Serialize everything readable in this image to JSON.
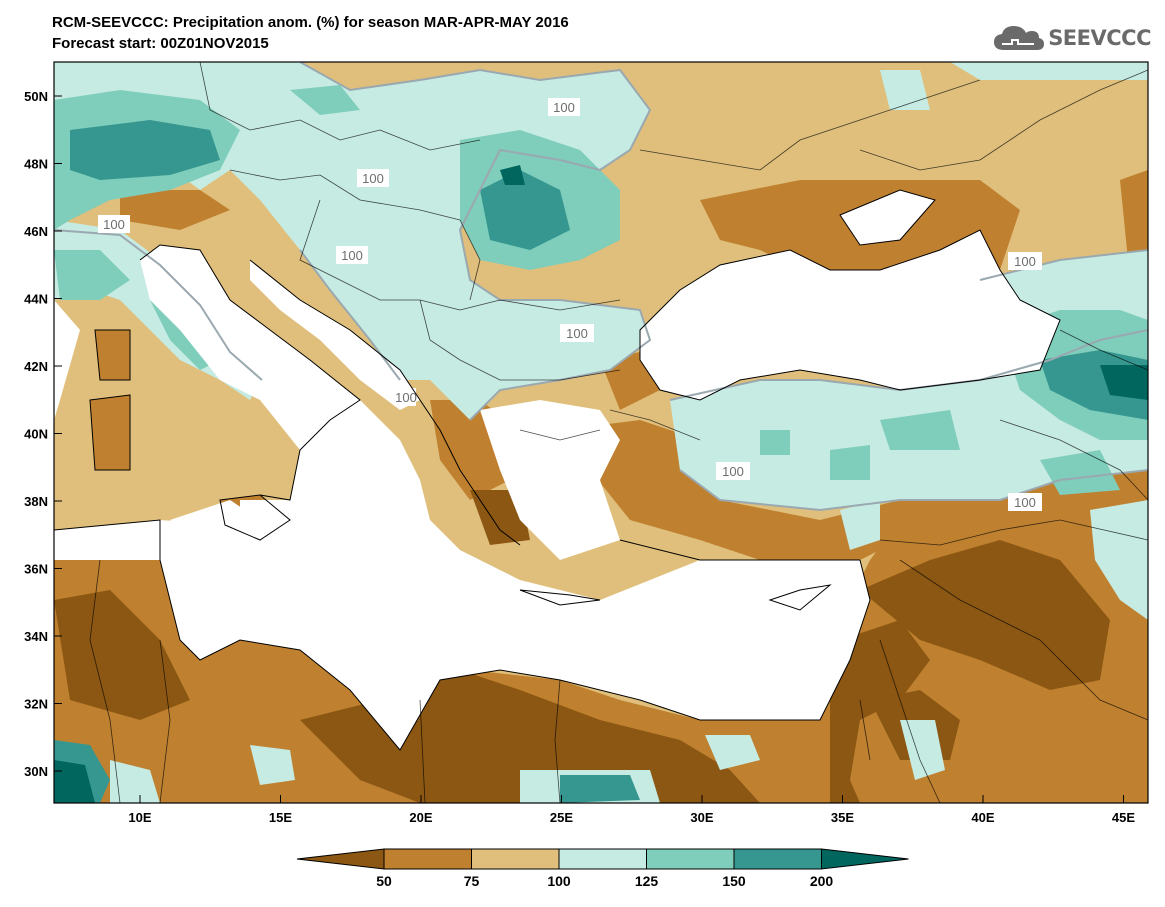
{
  "header": {
    "title": "RCM-SEEVCCC: Precipitation anom. (%) for season MAR-APR-MAY 2016",
    "subtitle": "Forecast start: 00Z01NOV2015"
  },
  "logo": {
    "text": "SEEVCCC",
    "icon": "cloud-icon"
  },
  "map": {
    "lat_labels": [
      "50N",
      "48N",
      "46N",
      "44N",
      "42N",
      "40N",
      "38N",
      "36N",
      "34N",
      "32N",
      "30N"
    ],
    "lon_labels": [
      "10E",
      "15E",
      "20E",
      "25E",
      "30E",
      "35E",
      "40E",
      "45E"
    ],
    "contour_labels": [
      "100",
      "100",
      "100",
      "100",
      "100",
      "100",
      "100",
      "100",
      "100"
    ]
  },
  "legend": {
    "ticks": [
      "50",
      "75",
      "100",
      "125",
      "150",
      "200"
    ],
    "colors": [
      "#8b5712",
      "#bf8130",
      "#dfbf7b",
      "#c6ebe3",
      "#7fcdbb",
      "#35978f",
      "#01665e"
    ]
  }
}
